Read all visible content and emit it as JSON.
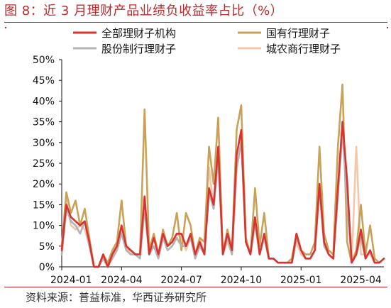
{
  "header": {
    "title": "图 8：近 3 月理财产品业绩负收益率占比（%）"
  },
  "footer": {
    "source": "资料来源：普益标准，华西证券研究所"
  },
  "chart_data": {
    "type": "line",
    "title": "",
    "xlabel": "",
    "ylabel": "",
    "ylim": [
      0,
      50
    ],
    "grid": false,
    "legend_position": "top",
    "y_ticks": [
      "0%",
      "5%",
      "10%",
      "15%",
      "20%",
      "25%",
      "30%",
      "35%",
      "40%",
      "45%",
      "50%"
    ],
    "x_ticks": [
      "2024-01",
      "2024-04",
      "2024-07",
      "2024-10",
      "2025-01",
      "2025-04"
    ],
    "x_tick_index": [
      0,
      13,
      26,
      39,
      52,
      65
    ],
    "series": [
      {
        "name": "全部理财子机构",
        "color": "#d9322f",
        "values": [
          4,
          15,
          12,
          11,
          10,
          11,
          6,
          0,
          0,
          3,
          0,
          3,
          5,
          10,
          5,
          4,
          3,
          3,
          17,
          3,
          7,
          3,
          8,
          5,
          6,
          8,
          8,
          5,
          8,
          3,
          6,
          3,
          19,
          15,
          29,
          3,
          8,
          4,
          27,
          33,
          6,
          3,
          12,
          3,
          8,
          2,
          2,
          1,
          1,
          1,
          1,
          8,
          4,
          2,
          2,
          4,
          20,
          6,
          3,
          2,
          19,
          35,
          21,
          1,
          3,
          9,
          2,
          4,
          1,
          1,
          2
        ]
      },
      {
        "name": "国有行理财子",
        "color": "#c9a25a",
        "values": [
          5,
          18,
          13,
          16,
          10,
          14,
          7,
          0,
          0,
          3,
          1,
          4,
          6,
          16,
          5,
          4,
          3,
          3,
          38,
          4,
          8,
          3,
          9,
          5,
          7,
          13,
          4,
          13,
          10,
          3,
          7,
          6,
          29,
          20,
          36,
          3,
          9,
          4,
          33,
          39,
          7,
          3,
          19,
          5,
          13,
          2,
          2,
          1,
          1,
          1,
          2,
          8,
          4,
          3,
          3,
          6,
          29,
          8,
          4,
          3,
          29,
          44,
          6,
          1,
          4,
          15,
          3,
          10,
          2,
          1,
          2
        ]
      },
      {
        "name": "股份制行理财子",
        "color": "#b3b3b3",
        "values": [
          3,
          14,
          11,
          10,
          8,
          11,
          5,
          0,
          0,
          2,
          0,
          2,
          4,
          8,
          4,
          3,
          3,
          2,
          14,
          3,
          5,
          2,
          7,
          4,
          5,
          7,
          5,
          5,
          7,
          2,
          5,
          3,
          18,
          14,
          26,
          3,
          7,
          3,
          24,
          30,
          6,
          3,
          11,
          3,
          7,
          2,
          2,
          1,
          1,
          1,
          1,
          7,
          4,
          2,
          2,
          4,
          19,
          5,
          3,
          2,
          17,
          33,
          15,
          1,
          3,
          7,
          2,
          4,
          1,
          1,
          2
        ]
      },
      {
        "name": "城农商行理财子",
        "color": "#f4c7a8",
        "values": [
          3,
          16,
          10,
          9,
          10,
          9,
          5,
          0,
          0,
          2,
          0,
          3,
          5,
          9,
          5,
          3,
          3,
          3,
          14,
          3,
          7,
          3,
          7,
          5,
          6,
          8,
          7,
          4,
          7,
          3,
          7,
          3,
          24,
          14,
          28,
          3,
          6,
          3,
          23,
          31,
          6,
          3,
          10,
          3,
          7,
          2,
          2,
          1,
          1,
          1,
          1,
          6,
          3,
          2,
          2,
          4,
          18,
          6,
          3,
          2,
          17,
          33,
          18,
          1,
          29,
          3,
          3,
          3,
          1,
          1,
          2
        ]
      }
    ]
  }
}
